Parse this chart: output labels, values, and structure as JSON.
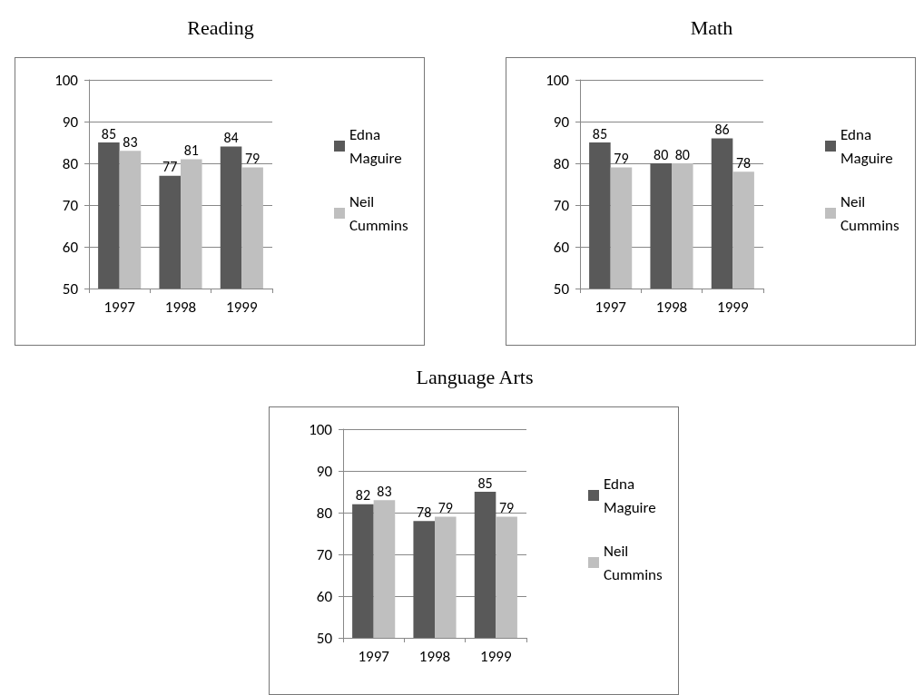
{
  "chart_data": [
    {
      "type": "bar",
      "title": "Reading",
      "categories": [
        "1997",
        "1998",
        "1999"
      ],
      "series": [
        {
          "name": "Edna Maguire",
          "color": "#595959",
          "values": [
            85,
            77,
            84
          ]
        },
        {
          "name": "Neil Cummins",
          "color": "#bfbfbf",
          "values": [
            83,
            81,
            79
          ]
        }
      ],
      "ylim": [
        50,
        100
      ],
      "yticks": [
        50,
        60,
        70,
        80,
        90,
        100
      ],
      "grid": "y",
      "legend": "right",
      "data_labels": true
    },
    {
      "type": "bar",
      "title": "Math",
      "categories": [
        "1997",
        "1998",
        "1999"
      ],
      "series": [
        {
          "name": "Edna Maguire",
          "color": "#595959",
          "values": [
            85,
            80,
            86
          ]
        },
        {
          "name": "Neil Cummins",
          "color": "#bfbfbf",
          "values": [
            79,
            80,
            78
          ]
        }
      ],
      "ylim": [
        50,
        100
      ],
      "yticks": [
        50,
        60,
        70,
        80,
        90,
        100
      ],
      "grid": "y",
      "legend": "right",
      "data_labels": true
    },
    {
      "type": "bar",
      "title": "Language Arts",
      "categories": [
        "1997",
        "1998",
        "1999"
      ],
      "series": [
        {
          "name": "Edna Maguire",
          "color": "#595959",
          "values": [
            82,
            78,
            85
          ]
        },
        {
          "name": "Neil Cummins",
          "color": "#bfbfbf",
          "values": [
            83,
            79,
            79
          ]
        }
      ],
      "ylim": [
        50,
        100
      ],
      "yticks": [
        50,
        60,
        70,
        80,
        90,
        100
      ],
      "grid": "y",
      "legend": "right",
      "data_labels": true
    }
  ]
}
